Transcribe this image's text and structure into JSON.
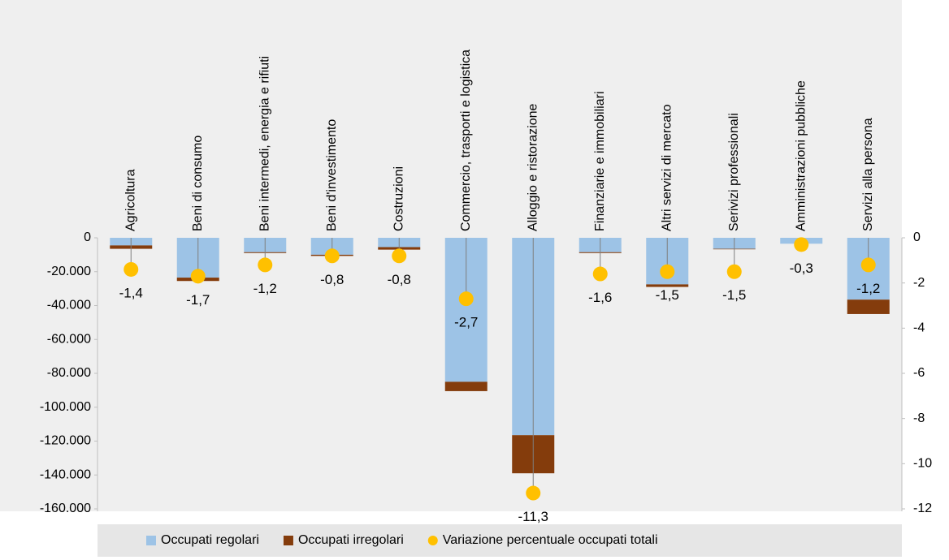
{
  "chart_data": {
    "type": "bar",
    "categories": [
      "Agricoltura",
      "Beni di consumo",
      "Beni intermedi, energia e rifiuti",
      "Beni d'investimento",
      "Costruzioni",
      "Commercio, trasporti e logistica",
      "Alloggio e ristorazione",
      "Finanziarie e immobiliari",
      "Altri servizi di mercato",
      "Serivizi professionali",
      "Amministrazioni pubbliche",
      "Servizi alla persona"
    ],
    "series": [
      {
        "name": "Occupati regolari",
        "color": "#9dc3e6",
        "values": [
          -4500,
          -23500,
          -8500,
          -10000,
          -5500,
          -85000,
          -116500,
          -8500,
          -27500,
          -6500,
          -3500,
          -36500
        ]
      },
      {
        "name": "Occupati irregolari",
        "color": "#843c0c",
        "values": [
          -2000,
          -2000,
          -500,
          -700,
          -1500,
          -5500,
          -22500,
          -500,
          -1500,
          -300,
          0,
          -8500
        ]
      },
      {
        "name": "Variazione percentuale occupati totali",
        "color": "#ffc000",
        "axis": "y2",
        "values": [
          -1.4,
          -1.7,
          -1.2,
          -0.8,
          -0.8,
          -2.7,
          -11.3,
          -1.6,
          -1.5,
          -1.5,
          -0.3,
          -1.2
        ],
        "value_labels": [
          "-1,4",
          "-1,7",
          "-1,2",
          "-0,8",
          "-0,8",
          "-2,7",
          "-11,3",
          "-1,6",
          "-1,5",
          "-1,5",
          "-0,3",
          "-1,2"
        ]
      }
    ],
    "ylim": [
      -160000,
      0
    ],
    "yticks": [
      0,
      {
        "value": -20000,
        "label": "-20.000"
      },
      {
        "value": -40000,
        "label": "-40.000"
      },
      {
        "value": -60000,
        "label": "-60.000"
      },
      {
        "value": -80000,
        "label": "-80.000"
      },
      {
        "value": -100000,
        "label": "-100.000"
      },
      {
        "value": -120000,
        "label": "-120.000"
      },
      {
        "value": -140000,
        "label": "-140.000"
      },
      {
        "value": -160000,
        "label": "-160.000"
      }
    ],
    "y2lim": [
      -12,
      0
    ],
    "y2ticks": [
      0,
      -2,
      -4,
      -6,
      -8,
      -10,
      -12
    ],
    "legend": "bottom"
  }
}
